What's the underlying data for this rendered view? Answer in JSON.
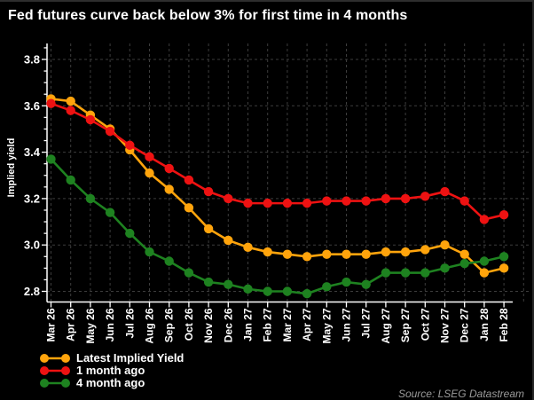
{
  "source": "Source: LSEG Datastream",
  "chart_data": {
    "type": "line",
    "title": "Fed futures curve back below 3% for first time in 4 months",
    "ylabel": "Implied yield",
    "xlabel": "",
    "categories": [
      "Mar 26",
      "Apr 26",
      "May 26",
      "Jun 26",
      "Jul 26",
      "Aug 26",
      "Sep 26",
      "Oct 26",
      "Nov 26",
      "Dec 26",
      "Jan 27",
      "Feb 27",
      "Mar 27",
      "Apr 27",
      "May 27",
      "Jun 27",
      "Jul 27",
      "Aug 27",
      "Sep 27",
      "Oct 27",
      "Nov 27",
      "Dec 27",
      "Jan 28",
      "Feb 28"
    ],
    "series": [
      {
        "name": "Latest Implied Yield",
        "color": "#ffa40c",
        "values": [
          3.63,
          3.62,
          3.56,
          3.5,
          3.41,
          3.31,
          3.24,
          3.16,
          3.07,
          3.02,
          2.99,
          2.97,
          2.96,
          2.95,
          2.96,
          2.96,
          2.96,
          2.97,
          2.97,
          2.98,
          3.0,
          2.96,
          2.88,
          2.9
        ]
      },
      {
        "name": "1 month ago",
        "color": "#ee1212",
        "values": [
          3.61,
          3.58,
          3.54,
          3.49,
          3.43,
          3.38,
          3.33,
          3.28,
          3.23,
          3.2,
          3.18,
          3.18,
          3.18,
          3.18,
          3.19,
          3.19,
          3.19,
          3.2,
          3.2,
          3.21,
          3.23,
          3.19,
          3.11,
          3.13
        ]
      },
      {
        "name": "4 month ago",
        "color": "#1e8220",
        "values": [
          3.37,
          3.28,
          3.2,
          3.14,
          3.05,
          2.97,
          2.93,
          2.88,
          2.84,
          2.83,
          2.81,
          2.8,
          2.8,
          2.79,
          2.82,
          2.84,
          2.83,
          2.88,
          2.88,
          2.88,
          2.9,
          2.92,
          2.93,
          2.95
        ]
      }
    ],
    "yticks": [
      2.8,
      3.0,
      3.2,
      3.4,
      3.6,
      3.8
    ],
    "ylim": [
      2.75,
      3.87
    ],
    "minor_tick_step": 0.05,
    "grid": true,
    "grid_style": "dashed",
    "legend_position": "bottom-left",
    "colors": {
      "background": "#000000",
      "axis": "#ffffff",
      "grid": "#3d3d3d",
      "text": "#ffffff",
      "source_text": "#9a9a9a"
    }
  }
}
